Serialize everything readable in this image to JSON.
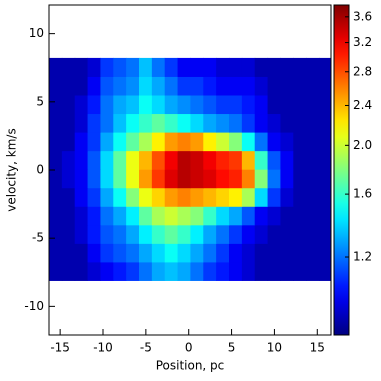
{
  "chart_data": {
    "type": "heatmap",
    "xlabel": "Position, pc",
    "ylabel": "velocity, km/s",
    "xlim": [
      -16.3,
      16.6
    ],
    "ylim": [
      -12.1,
      12.1
    ],
    "xticks": [
      -15,
      -10,
      -5,
      0,
      5,
      10,
      15
    ],
    "yticks": [
      -10,
      -5,
      0,
      5,
      10
    ],
    "colormap": "jet",
    "color_scale": "log",
    "clim": [
      0.84,
      3.8
    ],
    "cticks": [
      1.2,
      1.6,
      {
        "value": 2,
        "label": "2.0"
      },
      2.4,
      2.8,
      3.2,
      3.6
    ],
    "x_edges": [
      -16.3,
      -14.8,
      -13.3,
      -11.8,
      -10.3,
      -8.8,
      -7.3,
      -5.8,
      -4.3,
      -2.8,
      -1.3,
      0.2,
      1.7,
      3.2,
      4.7,
      6.2,
      7.7,
      9.2,
      10.7,
      12.2,
      13.7,
      15.2,
      16.7
    ],
    "y_edges": [
      -8.1,
      -6.74,
      -5.38,
      -4.02,
      -2.66,
      -1.3,
      0.06,
      1.42,
      2.78,
      4.14,
      5.5,
      6.86,
      8.22
    ],
    "values": [
      [
        0.9,
        0.9,
        0.9,
        0.95,
        1.0,
        1.05,
        1.1,
        1.2,
        1.3,
        1.35,
        1.3,
        1.2,
        1.1,
        1.05,
        1.0,
        0.95,
        0.9,
        0.9,
        0.9,
        0.9,
        0.9,
        0.9
      ],
      [
        0.9,
        0.9,
        0.9,
        1.0,
        1.1,
        1.15,
        1.2,
        1.3,
        1.4,
        1.5,
        1.4,
        1.3,
        1.2,
        1.1,
        1.0,
        0.95,
        0.9,
        0.9,
        0.9,
        0.9,
        0.9,
        0.9
      ],
      [
        0.9,
        0.9,
        0.95,
        1.05,
        1.15,
        1.2,
        1.3,
        1.45,
        1.6,
        1.7,
        1.6,
        1.45,
        1.3,
        1.2,
        1.1,
        1.0,
        0.95,
        0.9,
        0.9,
        0.9,
        0.9,
        0.9
      ],
      [
        0.9,
        0.9,
        0.95,
        1.05,
        1.2,
        1.3,
        1.45,
        1.7,
        1.9,
        2.0,
        1.9,
        1.8,
        1.6,
        1.4,
        1.3,
        1.15,
        1.0,
        0.95,
        0.9,
        0.9,
        0.9,
        0.9
      ],
      [
        0.9,
        0.9,
        1.0,
        1.1,
        1.3,
        1.5,
        1.8,
        2.1,
        2.3,
        2.5,
        2.6,
        2.5,
        2.4,
        2.3,
        2.2,
        1.9,
        1.4,
        1.1,
        0.95,
        0.9,
        0.9,
        0.9
      ],
      [
        0.9,
        0.95,
        1.0,
        1.15,
        1.4,
        1.7,
        2.1,
        2.5,
        2.9,
        3.3,
        3.5,
        3.4,
        3.3,
        3.1,
        3.0,
        2.6,
        1.8,
        1.2,
        1.0,
        0.9,
        0.9,
        0.9
      ],
      [
        0.9,
        0.95,
        1.0,
        1.15,
        1.4,
        1.7,
        2.1,
        2.4,
        2.8,
        3.2,
        3.5,
        3.4,
        3.2,
        3.0,
        2.9,
        2.4,
        1.6,
        1.15,
        1.0,
        0.9,
        0.9,
        0.9
      ],
      [
        0.9,
        0.9,
        1.0,
        1.1,
        1.3,
        1.5,
        1.7,
        1.9,
        2.2,
        2.5,
        2.6,
        2.5,
        2.2,
        2.0,
        1.8,
        1.5,
        1.2,
        1.0,
        0.95,
        0.9,
        0.9,
        0.9
      ],
      [
        0.9,
        0.9,
        0.95,
        1.1,
        1.2,
        1.35,
        1.5,
        1.6,
        1.7,
        1.6,
        1.5,
        1.4,
        1.3,
        1.25,
        1.2,
        1.1,
        1.0,
        0.95,
        0.9,
        0.9,
        0.9,
        0.9
      ],
      [
        0.9,
        0.9,
        0.95,
        1.05,
        1.2,
        1.3,
        1.35,
        1.5,
        1.4,
        1.3,
        1.25,
        1.2,
        1.15,
        1.1,
        1.1,
        1.05,
        1.0,
        0.9,
        0.9,
        0.9,
        0.9,
        0.9
      ],
      [
        0.9,
        0.9,
        0.9,
        1.0,
        1.15,
        1.2,
        1.25,
        1.4,
        1.3,
        1.2,
        1.1,
        1.1,
        1.05,
        1.0,
        1.0,
        1.0,
        0.95,
        0.9,
        0.9,
        0.9,
        0.9,
        0.9
      ],
      [
        0.9,
        0.9,
        0.9,
        0.95,
        1.1,
        1.15,
        1.2,
        1.35,
        1.2,
        1.1,
        1.0,
        1.0,
        1.0,
        0.95,
        0.95,
        0.95,
        0.9,
        0.9,
        0.9,
        0.9,
        0.9,
        0.9
      ]
    ]
  }
}
